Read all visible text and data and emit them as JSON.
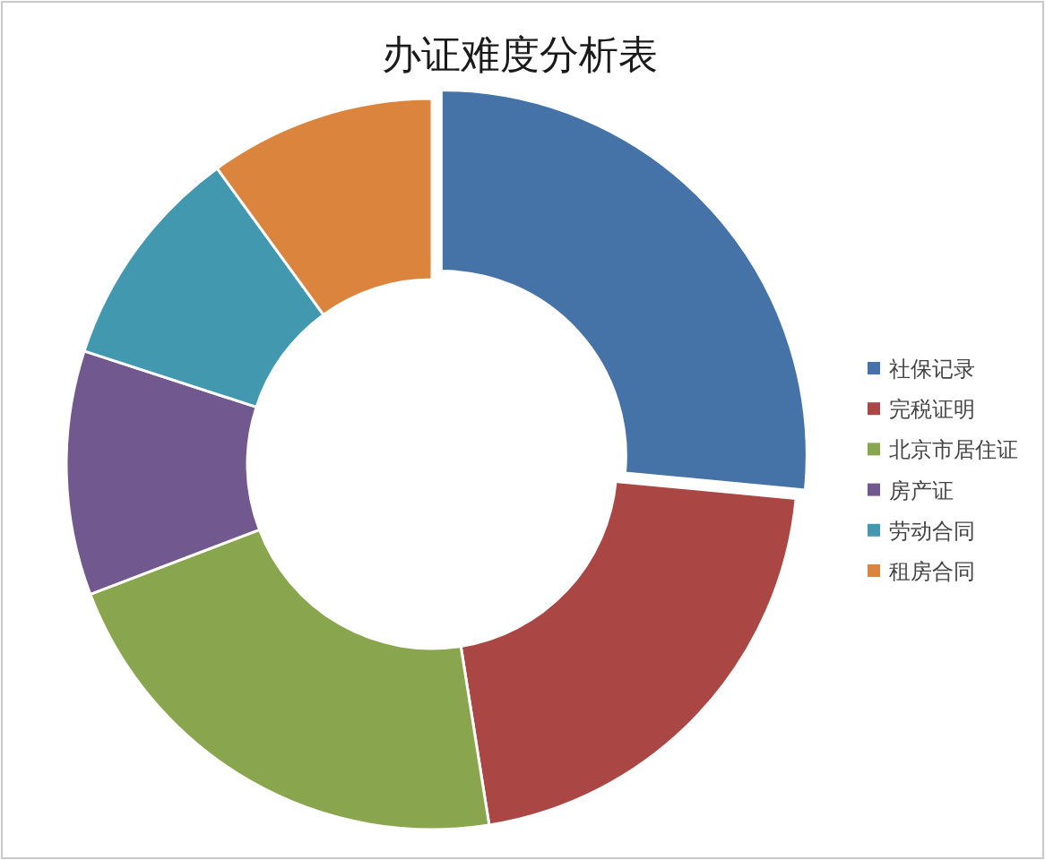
{
  "chart_data": {
    "type": "donut",
    "title": "办证难度分析表",
    "categories": [
      "社保记录",
      "完税证明",
      "北京市居住证",
      "房产证",
      "劳动合同",
      "租房合同"
    ],
    "values": [
      26.5,
      21,
      21.7,
      10.8,
      10,
      10
    ],
    "colors": [
      "#4572a7",
      "#aa4643",
      "#89a54e",
      "#71588f",
      "#4198af",
      "#db843d"
    ],
    "legend": "right"
  }
}
